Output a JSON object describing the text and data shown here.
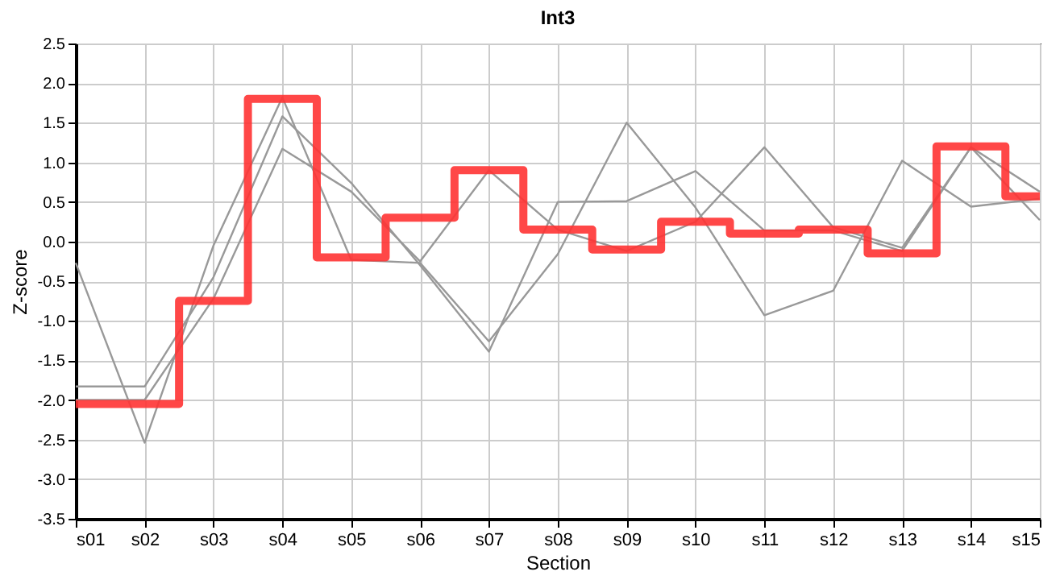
{
  "chart_data": {
    "type": "line",
    "title": "Int3",
    "xlabel": "Section",
    "ylabel": "Z-score",
    "categories": [
      "s01",
      "s02",
      "s03",
      "s04",
      "s05",
      "s06",
      "s07",
      "s08",
      "s09",
      "s10",
      "s11",
      "s12",
      "s13",
      "s14",
      "s15"
    ],
    "series": [
      {
        "color": "#999999",
        "values": [
          -0.27,
          -2.54,
          -0.05,
          1.82,
          -0.23,
          -0.27,
          -1.26,
          -0.16,
          1.5,
          0.43,
          -0.93,
          -0.62,
          1.02,
          0.44,
          0.54
        ]
      },
      {
        "color": "#999999",
        "values": [
          -1.83,
          -1.83,
          -0.45,
          1.58,
          0.74,
          -0.3,
          -1.39,
          0.5,
          0.51,
          0.89,
          0.14,
          0.14,
          -0.12,
          1.19,
          0.27
        ]
      },
      {
        "color": "#999999",
        "values": [
          -2.0,
          -2.0,
          -0.72,
          1.17,
          0.63,
          -0.25,
          0.9,
          0.15,
          -0.12,
          0.25,
          1.19,
          0.18,
          -0.08,
          1.19,
          0.63
        ]
      },
      {
        "type": "step",
        "color": "#ff3333",
        "values": [
          -2.05,
          -2.05,
          -0.75,
          1.8,
          -0.2,
          0.3,
          0.9,
          0.15,
          -0.1,
          0.25,
          0.1,
          0.15,
          -0.15,
          1.2,
          0.57
        ]
      }
    ],
    "ylim": [
      -3.5,
      2.5
    ],
    "yticks": [
      -3.5,
      {
        "value": -3,
        "label": "-3.0"
      },
      -2.5,
      {
        "value": -2,
        "label": "-2.0"
      },
      -1.5,
      {
        "value": -1,
        "label": "-1.0"
      },
      -0.5,
      {
        "value": 0,
        "label": "0.0"
      },
      0.5,
      {
        "value": 1,
        "label": "1.0"
      },
      1.5,
      {
        "value": 2,
        "label": "2.0"
      },
      2.5
    ],
    "grid": true,
    "legend": false
  }
}
